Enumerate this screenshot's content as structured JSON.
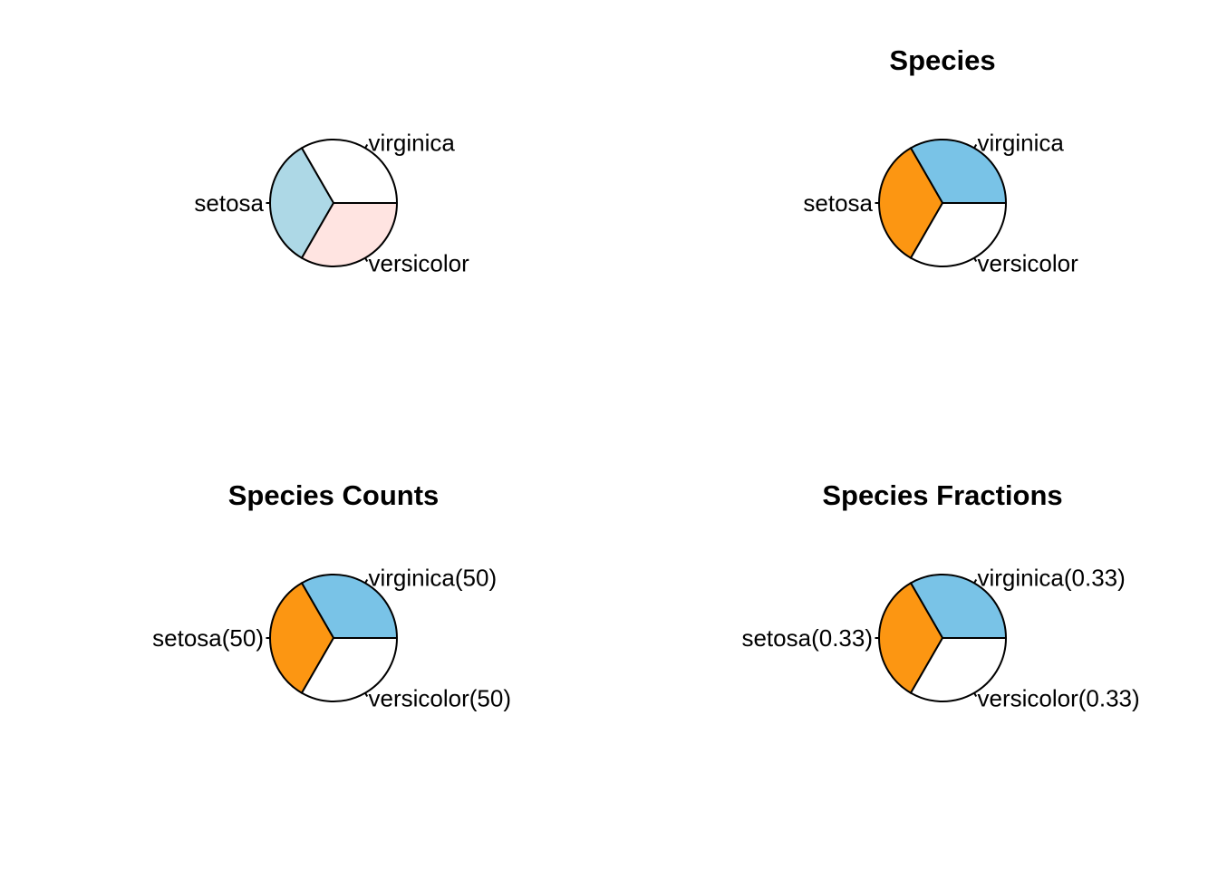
{
  "page": {
    "background_color": "#FFFFFF",
    "text_color": "#000000",
    "layout": "2x2 grid of pie charts"
  },
  "chart_data": [
    {
      "type": "pie",
      "title": "",
      "position": "top-left",
      "start_angle_deg": 0,
      "direction": "counterclockwise",
      "outline_color": "#000000",
      "label_color": "#000000",
      "slices": [
        {
          "name": "virginica",
          "label": "virginica",
          "fraction": 0.3333,
          "color": "#FFFFFF"
        },
        {
          "name": "setosa",
          "label": "setosa",
          "fraction": 0.3333,
          "color": "#ADD8E6"
        },
        {
          "name": "versicolor",
          "label": "versicolor",
          "fraction": 0.3333,
          "color": "#FFE4E1"
        }
      ]
    },
    {
      "type": "pie",
      "title": "Species",
      "position": "top-right",
      "start_angle_deg": 0,
      "direction": "counterclockwise",
      "outline_color": "#000000",
      "label_color": "#000000",
      "slices": [
        {
          "name": "virginica",
          "label": "virginica",
          "fraction": 0.3333,
          "color": "#79C3E7"
        },
        {
          "name": "setosa",
          "label": "setosa",
          "fraction": 0.3333,
          "color": "#FC9612"
        },
        {
          "name": "versicolor",
          "label": "versicolor",
          "fraction": 0.3333,
          "color": "#FFFFFF"
        }
      ]
    },
    {
      "type": "pie",
      "title": "Species Counts",
      "position": "bottom-left",
      "start_angle_deg": 0,
      "direction": "counterclockwise",
      "outline_color": "#000000",
      "label_color": "#000000",
      "total": 150,
      "slices": [
        {
          "name": "virginica",
          "label": "virginica(50)",
          "value": 50,
          "fraction": 0.3333,
          "color": "#79C3E7"
        },
        {
          "name": "setosa",
          "label": "setosa(50)",
          "value": 50,
          "fraction": 0.3333,
          "color": "#FC9612"
        },
        {
          "name": "versicolor",
          "label": "versicolor(50)",
          "value": 50,
          "fraction": 0.3333,
          "color": "#FFFFFF"
        }
      ]
    },
    {
      "type": "pie",
      "title": "Species Fractions",
      "position": "bottom-right",
      "start_angle_deg": 0,
      "direction": "counterclockwise",
      "outline_color": "#000000",
      "label_color": "#000000",
      "slices": [
        {
          "name": "virginica",
          "label": "virginica(0.33)",
          "value": 0.33,
          "fraction": 0.3333,
          "color": "#79C3E7"
        },
        {
          "name": "setosa",
          "label": "setosa(0.33)",
          "value": 0.33,
          "fraction": 0.3333,
          "color": "#FC9612"
        },
        {
          "name": "versicolor",
          "label": "versicolor(0.33)",
          "value": 0.33,
          "fraction": 0.3333,
          "color": "#FFFFFF"
        }
      ]
    }
  ]
}
